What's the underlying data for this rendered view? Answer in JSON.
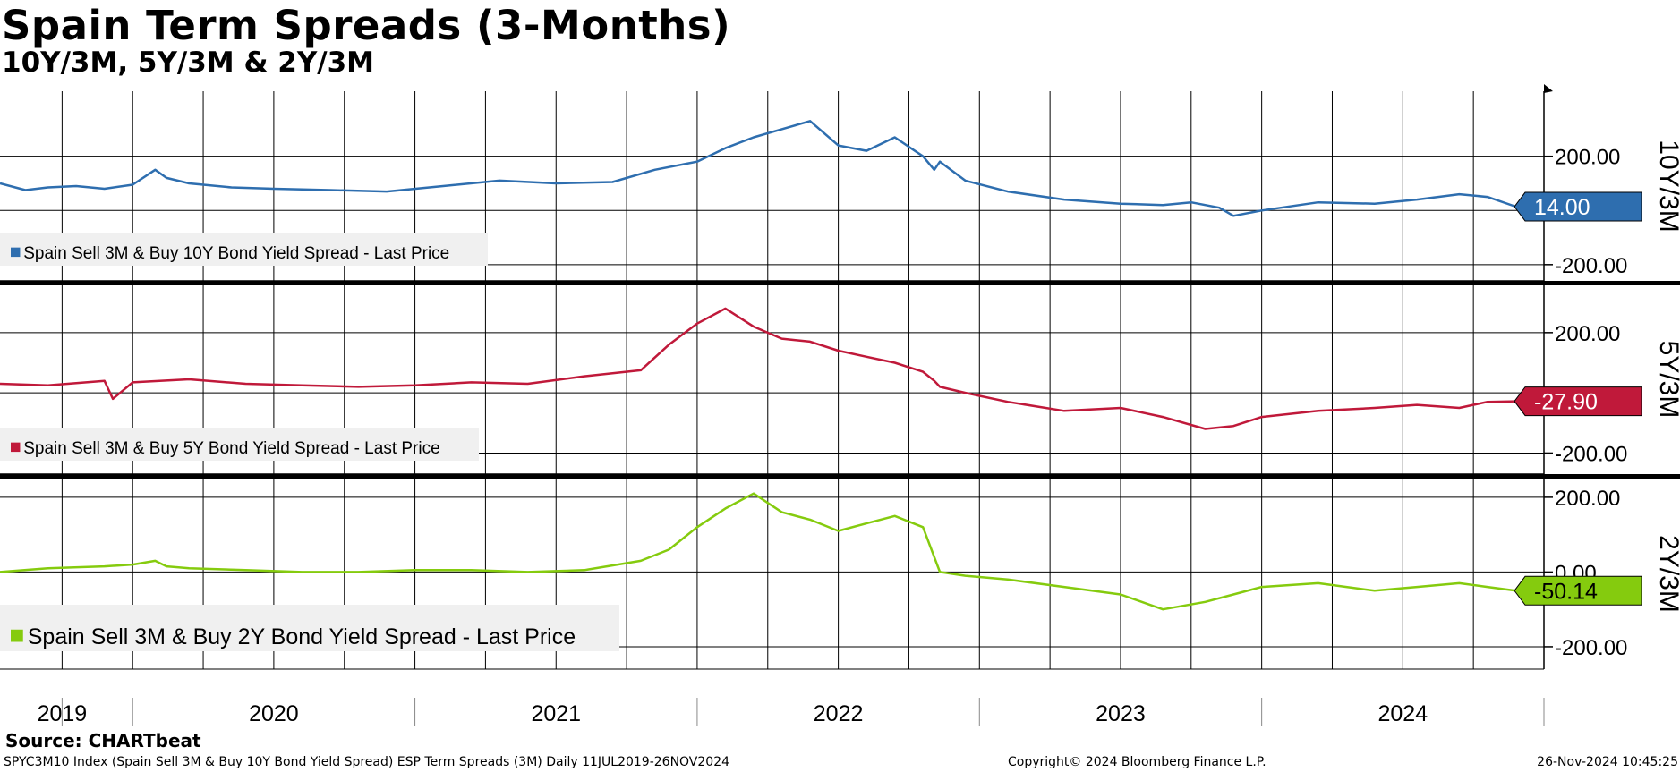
{
  "header": {
    "title": "Spain Term Spreads (3-Months)",
    "subtitle": "10Y/3M, 5Y/3M & 2Y/3M"
  },
  "footer": {
    "source": "Source: CHARTbeat",
    "description": "SPYC3M10 Index (Spain Sell 3M & Buy 10Y Bond Yield Spread) ESP Term Spreads (3M)  Daily 11JUL2019-26NOV2024",
    "copyright": "Copyright© 2024 Bloomberg Finance L.P.",
    "timestamp": "26-Nov-2024 10:45:25"
  },
  "chart_data": [
    {
      "type": "line",
      "axis_title": "10Y/3M",
      "legend": "Spain Sell 3M & Buy 10Y Bond Yield Spread - Last Price",
      "color": "#2E6EAF",
      "last_value": "14.00",
      "yticks": [
        "200.00",
        "-200.00"
      ],
      "ytick_values": [
        200,
        -200
      ],
      "ylim": [
        -260,
        440
      ],
      "x": [
        2019.53,
        2019.62,
        2019.7,
        2019.8,
        2019.9,
        2020.0,
        2020.08,
        2020.12,
        2020.2,
        2020.35,
        2020.5,
        2020.7,
        2020.9,
        2021.1,
        2021.3,
        2021.5,
        2021.7,
        2021.85,
        2022.0,
        2022.1,
        2022.2,
        2022.3,
        2022.4,
        2022.5,
        2022.6,
        2022.7,
        2022.8,
        2022.84,
        2022.86,
        2022.95,
        2023.1,
        2023.3,
        2023.5,
        2023.65,
        2023.75,
        2023.85,
        2023.9,
        2024.0,
        2024.2,
        2024.4,
        2024.55,
        2024.7,
        2024.8,
        2024.9
      ],
      "values": [
        100,
        75,
        85,
        90,
        80,
        95,
        150,
        120,
        100,
        85,
        80,
        75,
        70,
        90,
        110,
        100,
        105,
        150,
        180,
        230,
        270,
        300,
        330,
        240,
        220,
        270,
        200,
        150,
        180,
        110,
        70,
        40,
        25,
        20,
        30,
        10,
        -20,
        0,
        30,
        25,
        40,
        60,
        50,
        14
      ]
    },
    {
      "type": "line",
      "axis_title": "5Y/3M",
      "legend": "Spain Sell 3M & Buy 5Y Bond Yield Spread - Last Price",
      "color": "#C0193A",
      "last_value": "-27.90",
      "yticks": [
        "200.00",
        "-200.00"
      ],
      "ytick_values": [
        200,
        -200
      ],
      "ylim": [
        -270,
        360
      ],
      "x": [
        2019.53,
        2019.7,
        2019.9,
        2019.93,
        2020.0,
        2020.2,
        2020.4,
        2020.6,
        2020.8,
        2021.0,
        2021.2,
        2021.4,
        2021.6,
        2021.8,
        2021.9,
        2022.0,
        2022.1,
        2022.2,
        2022.3,
        2022.4,
        2022.5,
        2022.6,
        2022.7,
        2022.8,
        2022.84,
        2022.86,
        2022.95,
        2023.1,
        2023.3,
        2023.5,
        2023.65,
        2023.8,
        2023.9,
        2024.0,
        2024.2,
        2024.4,
        2024.55,
        2024.7,
        2024.8,
        2024.9
      ],
      "values": [
        30,
        25,
        40,
        -20,
        35,
        45,
        30,
        25,
        20,
        25,
        35,
        30,
        55,
        75,
        160,
        230,
        280,
        220,
        180,
        170,
        140,
        120,
        100,
        70,
        40,
        20,
        0,
        -30,
        -60,
        -50,
        -80,
        -120,
        -110,
        -80,
        -60,
        -50,
        -40,
        -50,
        -30,
        -28
      ]
    },
    {
      "type": "line",
      "axis_title": "2Y/3M",
      "legend": "Spain Sell 3M & Buy 2Y Bond Yield Spread - Last Price",
      "color": "#85CB0E",
      "last_value": "-50.14",
      "yticks": [
        "200.00",
        "0.00",
        "-200.00"
      ],
      "ytick_values": [
        200,
        0,
        -200
      ],
      "ylim": [
        -260,
        250
      ],
      "x": [
        2019.53,
        2019.7,
        2019.9,
        2020.0,
        2020.08,
        2020.12,
        2020.2,
        2020.4,
        2020.6,
        2020.8,
        2021.0,
        2021.2,
        2021.4,
        2021.6,
        2021.8,
        2021.9,
        2022.0,
        2022.1,
        2022.2,
        2022.3,
        2022.4,
        2022.5,
        2022.6,
        2022.7,
        2022.8,
        2022.84,
        2022.86,
        2022.95,
        2023.1,
        2023.3,
        2023.5,
        2023.65,
        2023.8,
        2023.9,
        2024.0,
        2024.2,
        2024.4,
        2024.55,
        2024.7,
        2024.8,
        2024.9
      ],
      "values": [
        0,
        10,
        15,
        20,
        30,
        15,
        10,
        5,
        0,
        0,
        5,
        5,
        0,
        5,
        30,
        60,
        120,
        170,
        210,
        160,
        140,
        110,
        130,
        150,
        120,
        40,
        0,
        -10,
        -20,
        -40,
        -60,
        -100,
        -80,
        -60,
        -40,
        -30,
        -50,
        -40,
        -30,
        -40,
        -50
      ]
    }
  ],
  "x_axis": {
    "years": [
      "2019",
      "2020",
      "2021",
      "2022",
      "2023",
      "2024"
    ],
    "year_label_positions": [
      2019.75,
      2020.5,
      2021.5,
      2022.5,
      2023.5,
      2024.5
    ],
    "year_boundaries": [
      2020.0,
      2021.0,
      2022.0,
      2023.0,
      2024.0,
      2025.0
    ],
    "xlim": [
      2019.53,
      2025.0
    ]
  }
}
